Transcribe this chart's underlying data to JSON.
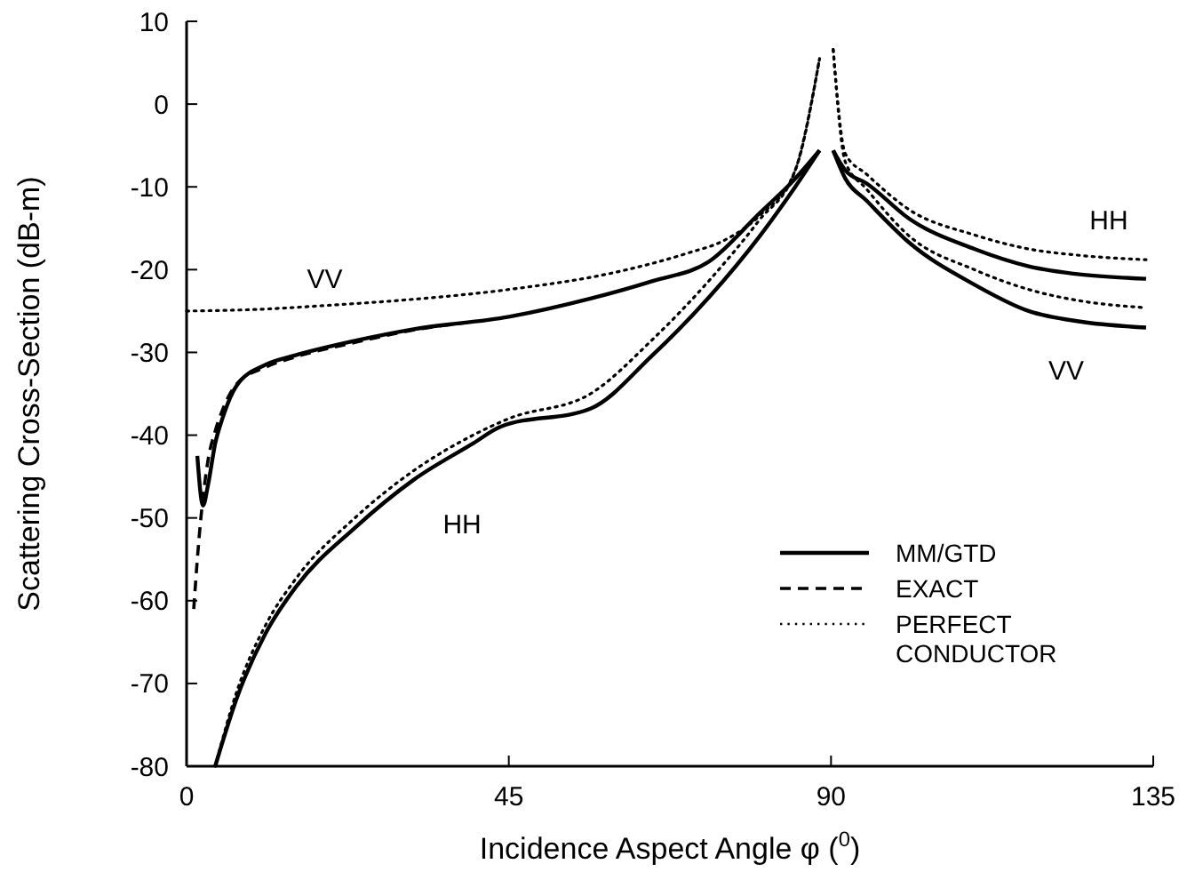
{
  "chart_data": {
    "type": "line",
    "xlabel": "Incidence Aspect Angle φ ($^{0}$)",
    "ylabel": "Scattering Cross-Section (dB-m)",
    "xlim": [
      0,
      135
    ],
    "xticks": [
      0,
      45,
      90,
      135
    ],
    "ylim": [
      -80,
      10
    ],
    "yticks": [
      -80,
      -70,
      -60,
      -50,
      -40,
      -30,
      -20,
      -10,
      0,
      10
    ],
    "grid": false,
    "legend": "bottom right",
    "marker": "none",
    "series": [
      {
        "name": "MM/GTD",
        "color": "#000000",
        "line_style": "solid",
        "x": [
          1.5,
          2.3,
          3,
          4,
          5,
          7,
          11,
          15,
          23.5,
          31.7,
          45,
          56.4,
          65,
          73,
          80,
          85,
          88.4
        ],
        "values": [
          -42.5,
          -48.5,
          -46,
          -41,
          -38,
          -34,
          -31.5,
          -30.4,
          -28.6,
          -27.2,
          -25.7,
          -23.5,
          -21.4,
          -19,
          -13.2,
          -9,
          -5.6
        ]
      },
      {
        "name": "EXACT",
        "color": "#000000",
        "line_style": "dashed",
        "x": [
          1,
          1.5,
          2,
          3,
          4,
          5,
          7,
          11,
          15,
          23.5,
          31.7,
          40
        ],
        "values": [
          -61,
          -55,
          -50,
          -43,
          -39.5,
          -37,
          -33.8,
          -31.8,
          -30.6,
          -28.8,
          -27.3,
          -26.3
        ]
      },
      {
        "name": "PERFECT CONDUCTOR",
        "color": "#000000",
        "line_style": "dotted",
        "x": [
          0,
          10,
          20,
          30,
          45,
          60,
          70,
          75,
          80,
          85,
          88.4
        ],
        "values": [
          -25,
          -24.8,
          -24.3,
          -23.7,
          -22.4,
          -20.3,
          -18,
          -16.5,
          -13.5,
          -8,
          5.5
        ]
      },
      {
        "color": "#000000",
        "line_style": "solid",
        "x": [
          4,
          7,
          11,
          15.3,
          23.5,
          31.7,
          40,
          43.8,
          56.4,
          65,
          73,
          80,
          85,
          88.4
        ],
        "values": [
          -80,
          -71.8,
          -64,
          -58.3,
          -51.2,
          -45.4,
          -41,
          -39,
          -36.8,
          -30.4,
          -23.3,
          -16,
          -10,
          -5.6
        ]
      },
      {
        "color": "#000000",
        "line_style": "dotted",
        "x": [
          4,
          7,
          11,
          15.3,
          23.5,
          31.7,
          40,
          45,
          56.4,
          65,
          73,
          80,
          85,
          88.4
        ],
        "values": [
          -80,
          -71,
          -63,
          -57.3,
          -50,
          -44.3,
          -40,
          -38,
          -35,
          -28.5,
          -21.3,
          -14,
          -8,
          5.5
        ]
      },
      {
        "color": "#000000",
        "line_style": "solid",
        "x": [
          90.3,
          92,
          95,
          101,
          110,
          117.6,
          125,
          134
        ],
        "values": [
          -5.6,
          -8,
          -9.6,
          -13.9,
          -17.5,
          -19.6,
          -20.6,
          -21.1
        ]
      },
      {
        "color": "#000000",
        "line_style": "dotted",
        "x": [
          90.3,
          92,
          95,
          101,
          110,
          117.6,
          125,
          134
        ],
        "values": [
          6.6,
          -6,
          -8.5,
          -12.8,
          -15.8,
          -17.5,
          -18.3,
          -18.8
        ]
      },
      {
        "color": "#000000",
        "line_style": "solid",
        "x": [
          90.3,
          92,
          95,
          101,
          110,
          117.6,
          125,
          134
        ],
        "values": [
          -5.6,
          -9,
          -11.7,
          -16.8,
          -21.8,
          -25,
          -26.3,
          -27
        ]
      },
      {
        "color": "#000000",
        "line_style": "dotted",
        "x": [
          90.3,
          92,
          95,
          101,
          110,
          117.6,
          125,
          134
        ],
        "values": [
          6.6,
          -7,
          -10.3,
          -16,
          -20,
          -22.4,
          -23.8,
          -24.6
        ]
      }
    ],
    "annotations": [
      "VV",
      "HH",
      "HH",
      "VV"
    ]
  }
}
